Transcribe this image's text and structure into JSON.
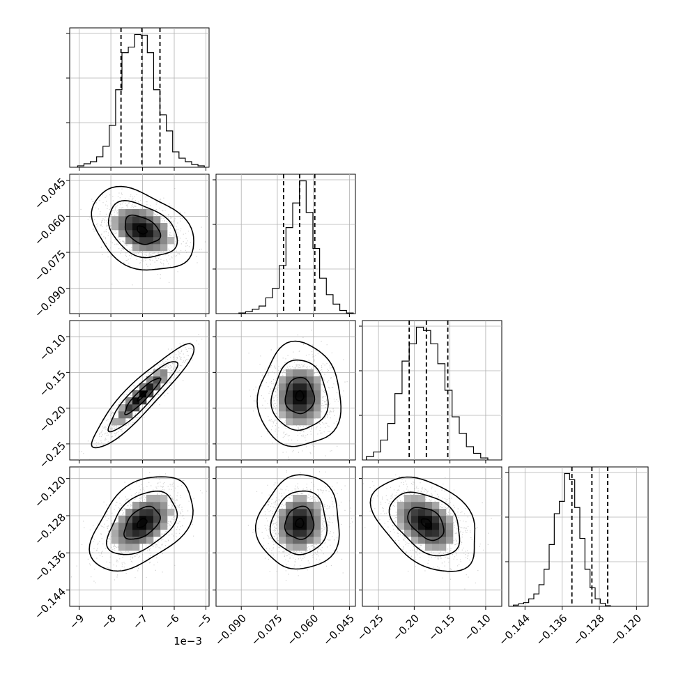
{
  "chart_data": {
    "type": "corner",
    "parameters": [
      {
        "id": "p0",
        "range": [
          -9.3,
          -4.9
        ],
        "ticks": [
          -9,
          -8,
          -7,
          -6,
          -5
        ],
        "tick_labels": [
          "−9",
          "−8",
          "−7",
          "−6",
          "−5"
        ],
        "offset_label": "1e−3",
        "quantiles": [
          -7.68,
          -7.02,
          -6.45
        ],
        "hist_bins_from": -9.05,
        "hist_bin_width": 0.2,
        "hist_counts": [
          2,
          5,
          8,
          15,
          30,
          60,
          111,
          164,
          172,
          190,
          189,
          164,
          111,
          75,
          52,
          22,
          13,
          8,
          4,
          2
        ]
      },
      {
        "id": "p1",
        "range": [
          -0.1005,
          -0.0425
        ],
        "ticks": [
          -0.09,
          -0.075,
          -0.06,
          -0.045
        ],
        "tick_labels": [
          "−0.090",
          "−0.075",
          "−0.060",
          "−0.045"
        ],
        "quantiles": [
          -0.0724,
          -0.0657,
          -0.0594
        ],
        "hist_bins_from": -0.091,
        "hist_bin_width": 0.0028,
        "hist_counts": [
          1,
          3,
          7,
          12,
          25,
          40,
          76,
          136,
          175,
          210,
          160,
          103,
          56,
          30,
          15,
          5,
          1
        ]
      },
      {
        "id": "p2",
        "range": [
          -0.2725,
          -0.0775
        ],
        "ticks": [
          -0.25,
          -0.2,
          -0.15,
          -0.1
        ],
        "tick_labels": [
          "−0.25",
          "−0.20",
          "−0.15",
          "−0.10"
        ],
        "quantiles": [
          -0.207,
          -0.183,
          -0.153
        ],
        "hist_bins_from": -0.267,
        "hist_bin_width": 0.01,
        "hist_counts": [
          5,
          12,
          30,
          55,
          100,
          149,
          175,
          200,
          195,
          175,
          145,
          105,
          65,
          40,
          20,
          10,
          3
        ]
      },
      {
        "id": "p3",
        "range": [
          -0.1475,
          -0.1175
        ],
        "ticks": [
          -0.144,
          -0.136,
          -0.128,
          -0.12
        ],
        "tick_labels": [
          "−0.144",
          "−0.136",
          "−0.128",
          "−0.120"
        ],
        "quantiles": [
          -0.1339,
          -0.1296,
          -0.1262
        ],
        "hist_bins_from": -0.1465,
        "hist_bin_width": 0.0011,
        "hist_counts": [
          2,
          4,
          6,
          12,
          20,
          35,
          60,
          100,
          150,
          170,
          215,
          205,
          160,
          110,
          60,
          30,
          12,
          5,
          1
        ]
      }
    ],
    "pairs": [
      {
        "x": 0,
        "y": 1,
        "corr": -0.35
      },
      {
        "x": 0,
        "y": 2,
        "corr": 0.92
      },
      {
        "x": 0,
        "y": 3,
        "corr": 0.45
      },
      {
        "x": 1,
        "y": 2,
        "corr": 0.0
      },
      {
        "x": 1,
        "y": 3,
        "corr": 0.05
      },
      {
        "x": 2,
        "y": 3,
        "corr": -0.4
      }
    ],
    "center": [
      -7.02,
      -0.0657,
      -0.183,
      -0.1296
    ],
    "sigma": [
      0.62,
      0.0066,
      0.028,
      0.0039
    ],
    "grid": true,
    "quantile_levels": [
      0.16,
      0.5,
      0.84
    ]
  }
}
